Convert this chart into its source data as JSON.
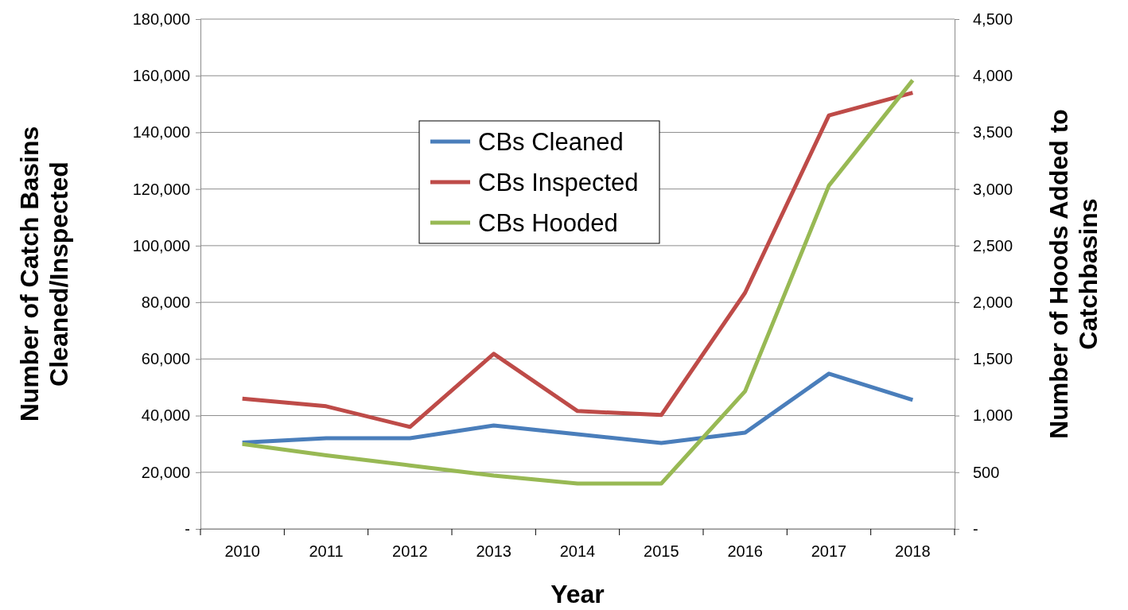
{
  "chart_data": {
    "type": "line",
    "xlabel": "Year",
    "ylabel": "Number of Catch Basins Cleaned/Inspected",
    "y2label": "Number of Hoods Added to Catchbasins",
    "categories": [
      "2010",
      "2011",
      "2012",
      "2013",
      "2014",
      "2015",
      "2016",
      "2017",
      "2018"
    ],
    "series": [
      {
        "name": "CBs Cleaned",
        "color": "#4a7ebb",
        "values": [
          30500,
          32000,
          32000,
          36500,
          33400,
          30300,
          34000,
          54800,
          45500
        ]
      },
      {
        "name": "CBs Inspected",
        "color": "#be4b48",
        "values": [
          46000,
          43300,
          36000,
          61800,
          41600,
          40200,
          83400,
          146000,
          154000
        ]
      },
      {
        "name": "CBs Hooded",
        "color": "#98b954",
        "axis": "y2",
        "values": [
          750,
          650,
          560,
          470,
          400,
          400,
          1215,
          3030,
          3960
        ]
      }
    ],
    "ylim": [
      0,
      180000
    ],
    "yticks": [
      {
        "value": 0,
        "label": "-"
      },
      {
        "value": 20000,
        "label": "20,000"
      },
      {
        "value": 40000,
        "label": "40,000"
      },
      {
        "value": 60000,
        "label": "60,000"
      },
      {
        "value": 80000,
        "label": "80,000"
      },
      {
        "value": 100000,
        "label": "100,000"
      },
      {
        "value": 120000,
        "label": "120,000"
      },
      {
        "value": 140000,
        "label": "140,000"
      },
      {
        "value": 160000,
        "label": "160,000"
      },
      {
        "value": 180000,
        "label": "180,000"
      }
    ],
    "y2lim": [
      0,
      4500
    ],
    "y2ticks": [
      {
        "value": 0,
        "label": "-"
      },
      {
        "value": 500,
        "label": "500"
      },
      {
        "value": 1000,
        "label": "1,000"
      },
      {
        "value": 1500,
        "label": "1,500"
      },
      {
        "value": 2000,
        "label": "2,000"
      },
      {
        "value": 2500,
        "label": "2,500"
      },
      {
        "value": 3000,
        "label": "3,000"
      },
      {
        "value": 3500,
        "label": "3,500"
      },
      {
        "value": 4000,
        "label": "4,000"
      },
      {
        "value": 4500,
        "label": "4,500"
      }
    ],
    "grid": "y",
    "legend": "top",
    "marker": "none",
    "line_style": "solid"
  }
}
